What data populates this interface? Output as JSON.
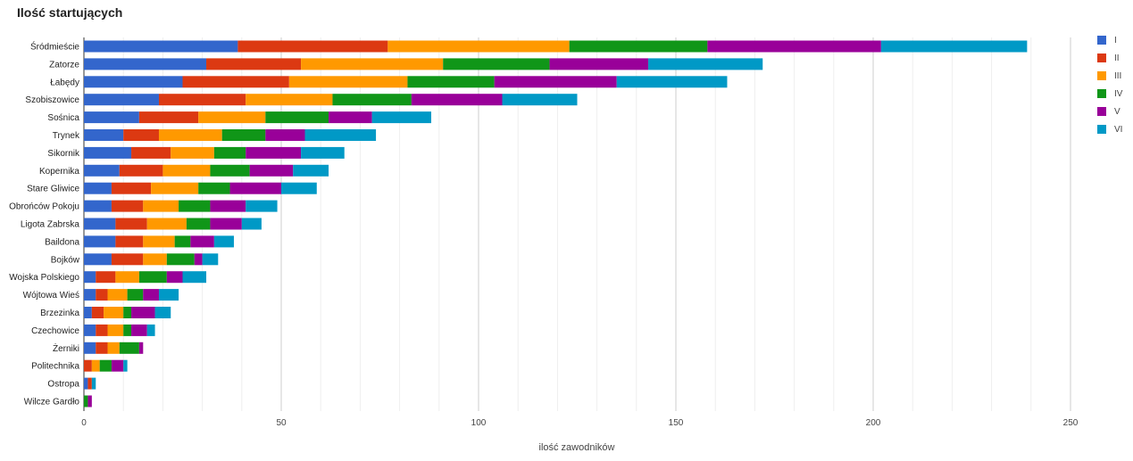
{
  "chart_data": {
    "type": "bar",
    "orientation": "horizontal",
    "stacked": true,
    "title": "Ilość startujących",
    "xlabel": "ilość zawodników",
    "ylabel": "",
    "xlim": [
      0,
      250
    ],
    "xticks": [
      0,
      50,
      100,
      150,
      200,
      250
    ],
    "grid": true,
    "legend_position": "right",
    "categories": [
      "Śródmieście",
      "Zatorze",
      "Łabędy",
      "Szobiszowice",
      "Sośnica",
      "Trynek",
      "Sikornik",
      "Kopernika",
      "Stare Gliwice",
      "Obrońców Pokoju",
      "Ligota Zabrska",
      "Baildona",
      "Bojków",
      "Wojska Polskiego",
      "Wójtowa Wieś",
      "Brzezinka",
      "Czechowice",
      "Żerniki",
      "Politechnika",
      "Ostropa",
      "Wilcze Gardło"
    ],
    "series": [
      {
        "name": "I",
        "color": "#3366cc",
        "values": [
          39,
          31,
          25,
          19,
          14,
          10,
          12,
          9,
          7,
          7,
          8,
          8,
          7,
          3,
          3,
          2,
          3,
          3,
          0,
          1,
          0
        ]
      },
      {
        "name": "II",
        "color": "#dc3912",
        "values": [
          38,
          24,
          27,
          22,
          15,
          9,
          10,
          11,
          10,
          8,
          8,
          7,
          8,
          5,
          3,
          3,
          3,
          3,
          2,
          1,
          0
        ]
      },
      {
        "name": "III",
        "color": "#ff9900",
        "values": [
          46,
          36,
          30,
          22,
          17,
          16,
          11,
          12,
          12,
          9,
          10,
          8,
          6,
          6,
          5,
          5,
          4,
          3,
          2,
          0,
          0
        ]
      },
      {
        "name": "IV",
        "color": "#109618",
        "values": [
          35,
          27,
          22,
          20,
          16,
          11,
          8,
          10,
          8,
          8,
          6,
          4,
          7,
          7,
          4,
          2,
          2,
          5,
          3,
          0,
          1
        ]
      },
      {
        "name": "V",
        "color": "#990099",
        "values": [
          44,
          25,
          31,
          23,
          11,
          10,
          14,
          11,
          13,
          9,
          8,
          6,
          2,
          4,
          4,
          6,
          4,
          1,
          3,
          0,
          1
        ]
      },
      {
        "name": "VI",
        "color": "#0099c6",
        "values": [
          37,
          29,
          28,
          19,
          15,
          18,
          11,
          9,
          9,
          8,
          5,
          5,
          4,
          6,
          5,
          4,
          2,
          0,
          1,
          1,
          0
        ]
      }
    ]
  }
}
